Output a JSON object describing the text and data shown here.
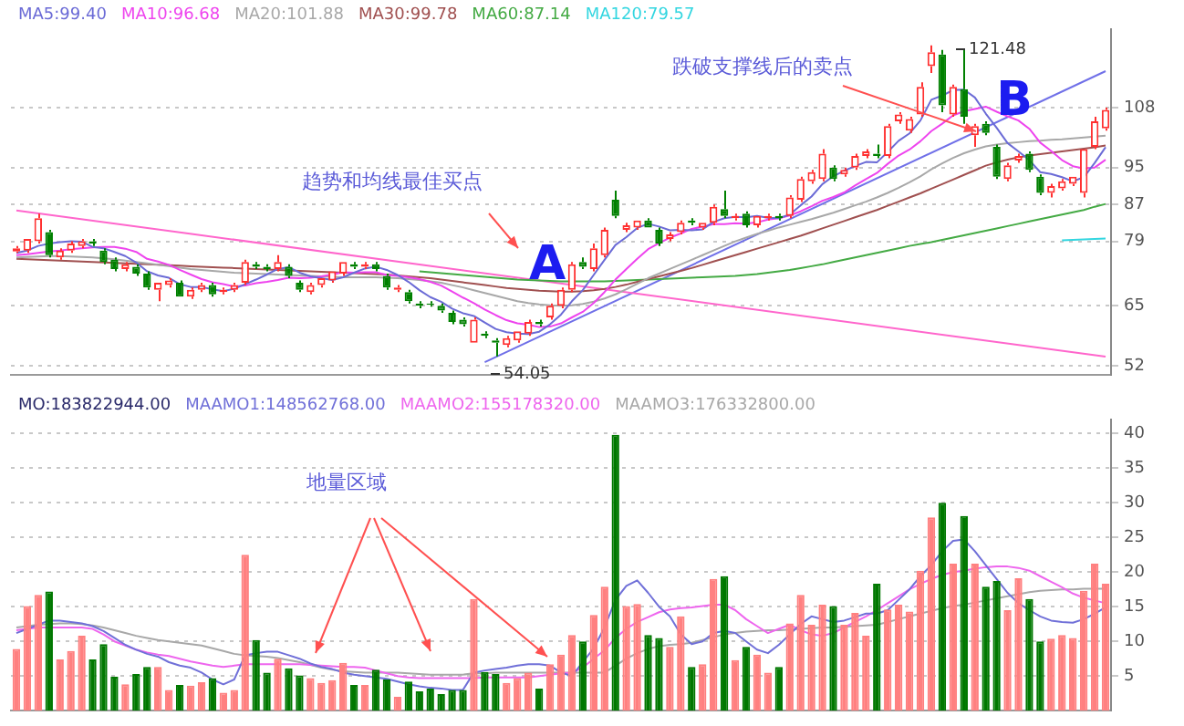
{
  "chart_data": [
    {
      "type": "candlestick",
      "categories": [
        null,
        null,
        null,
        null,
        null,
        null,
        null,
        null,
        null,
        null,
        null,
        null,
        null,
        null,
        null,
        null,
        null,
        null,
        null,
        null,
        null,
        null,
        null,
        null,
        null,
        null,
        null,
        null,
        null,
        null,
        null,
        null,
        null,
        null,
        null,
        null,
        null,
        null,
        null,
        null,
        null,
        null,
        null,
        null,
        null,
        null,
        null,
        null,
        null,
        null,
        null,
        null,
        null,
        null,
        null,
        null,
        null,
        null,
        null,
        null,
        null,
        null,
        null,
        null,
        null,
        null,
        null,
        null,
        null,
        null,
        null,
        null,
        null,
        null,
        null,
        null,
        null,
        null,
        null,
        null,
        null,
        null,
        null,
        null,
        null,
        null,
        null,
        null,
        null,
        null,
        null,
        null,
        null,
        null,
        null,
        null,
        null,
        null,
        null,
        null,
        null
      ],
      "ohlc": [
        [
          76.8,
          78,
          76.5,
          77.5
        ],
        [
          77,
          79.5,
          76.5,
          79.5
        ],
        [
          79,
          85,
          78.5,
          84
        ],
        [
          81,
          81.5,
          75.5,
          76
        ],
        [
          75.5,
          77.5,
          75,
          77
        ],
        [
          77,
          79,
          76.5,
          78.5
        ],
        [
          78,
          79.5,
          77.5,
          79
        ],
        [
          79,
          79.5,
          78,
          78.5
        ],
        [
          77,
          77.5,
          74,
          74.5
        ],
        [
          75,
          75.5,
          72.5,
          73
        ],
        [
          73,
          74.5,
          72.5,
          74
        ],
        [
          73.5,
          74,
          71.5,
          72
        ],
        [
          72,
          72.5,
          68.5,
          69
        ],
        [
          68.5,
          70,
          66,
          70
        ],
        [
          69.5,
          71,
          69,
          70.5
        ],
        [
          70,
          70.5,
          67,
          67
        ],
        [
          67,
          69,
          66.5,
          68.5
        ],
        [
          68.5,
          70,
          68,
          69.5
        ],
        [
          69.5,
          70,
          67,
          67.5
        ],
        [
          68,
          69,
          67.5,
          68.5
        ],
        [
          68.5,
          70,
          68,
          69.5
        ],
        [
          70,
          75,
          69.5,
          74.5
        ],
        [
          74,
          74.5,
          73,
          73.5
        ],
        [
          73.5,
          74,
          72.5,
          73
        ],
        [
          73,
          76,
          72.5,
          74.5
        ],
        [
          73.5,
          74,
          71,
          71.5
        ],
        [
          70,
          70.5,
          68,
          68.5
        ],
        [
          68,
          70,
          67.5,
          69.5
        ],
        [
          69.5,
          71,
          69,
          71
        ],
        [
          70.5,
          72.5,
          70,
          72.5
        ],
        [
          72,
          74.5,
          71.5,
          74.5
        ],
        [
          74,
          74.5,
          73,
          73.5
        ],
        [
          73.5,
          74.5,
          73,
          74
        ],
        [
          74,
          74.5,
          72.5,
          73
        ],
        [
          71.5,
          72,
          68.5,
          69
        ],
        [
          68.5,
          69.5,
          68,
          69
        ],
        [
          68,
          68.5,
          65.5,
          66
        ],
        [
          65.5,
          66,
          64.5,
          65
        ],
        [
          65.5,
          66,
          64.8,
          65.2
        ],
        [
          65,
          65.5,
          63.5,
          64
        ],
        [
          63.5,
          64,
          61,
          61.5
        ],
        [
          62,
          62.5,
          60.5,
          61
        ],
        [
          57,
          62.5,
          57,
          62
        ],
        [
          59,
          59.5,
          58,
          58.5
        ],
        [
          57.5,
          58,
          54.05,
          57
        ],
        [
          56.5,
          58.5,
          56,
          58
        ],
        [
          57.5,
          59.5,
          57,
          59.5
        ],
        [
          59,
          62,
          58.5,
          61.5
        ],
        [
          61.5,
          62,
          60.5,
          61
        ],
        [
          62.5,
          65.5,
          62,
          65
        ],
        [
          65,
          69,
          64.5,
          68.5
        ],
        [
          68.5,
          74.5,
          68,
          74
        ],
        [
          74.5,
          75.5,
          73,
          73.5
        ],
        [
          73,
          78.5,
          72.5,
          77.5
        ],
        [
          76,
          82,
          75.5,
          81.5
        ],
        [
          88,
          90,
          84,
          84.5
        ],
        [
          81.5,
          83,
          81,
          82.5
        ],
        [
          82,
          83.5,
          81.5,
          83.5
        ],
        [
          83.5,
          84,
          82,
          82
        ],
        [
          81.5,
          82,
          78,
          78.5
        ],
        [
          79.5,
          81,
          79,
          80.5
        ],
        [
          81,
          83.5,
          80.5,
          83
        ],
        [
          83.5,
          84,
          82.5,
          83
        ],
        [
          82,
          83,
          81.5,
          83
        ],
        [
          83,
          87,
          82.5,
          86.5
        ],
        [
          86,
          90,
          84,
          84.5
        ],
        [
          84,
          85,
          83.5,
          84.5
        ],
        [
          85,
          85.5,
          82,
          82.5
        ],
        [
          82.5,
          84.5,
          82,
          84.5
        ],
        [
          84,
          85,
          83.5,
          84.5
        ],
        [
          84.5,
          85,
          83.5,
          84
        ],
        [
          84.5,
          89,
          84,
          88.5
        ],
        [
          88,
          93,
          87.5,
          92.5
        ],
        [
          92,
          94.5,
          91.5,
          94
        ],
        [
          92.5,
          99,
          92,
          98
        ],
        [
          95,
          95.5,
          92,
          92.5
        ],
        [
          93.5,
          95,
          93,
          94.5
        ],
        [
          95,
          98,
          94.5,
          97.5
        ],
        [
          97.5,
          99,
          97,
          98.5
        ],
        [
          98,
          100,
          97,
          97.5
        ],
        [
          97.5,
          104.5,
          97,
          104
        ],
        [
          105,
          107,
          104.5,
          106.5
        ],
        [
          103,
          106,
          102.5,
          105.5
        ],
        [
          106.5,
          113.5,
          106,
          112.5
        ],
        [
          117,
          121.48,
          115.5,
          120
        ],
        [
          119.5,
          120.5,
          107,
          108.5
        ],
        [
          106.5,
          113,
          106,
          112.5
        ],
        [
          112,
          120.5,
          104.5,
          106
        ],
        [
          102,
          104.5,
          99.5,
          104
        ],
        [
          104.5,
          105,
          102,
          102.5
        ],
        [
          99.5,
          100,
          92.5,
          93
        ],
        [
          92.5,
          96,
          92,
          95.5
        ],
        [
          96.5,
          98,
          96,
          97.5
        ],
        [
          98,
          98.5,
          94,
          94.5
        ],
        [
          93,
          93.5,
          89,
          89.5
        ],
        [
          89.5,
          91.5,
          88.5,
          91
        ],
        [
          90.5,
          92.5,
          90,
          92
        ],
        [
          91.5,
          93,
          91,
          93
        ],
        [
          89.5,
          99,
          88.5,
          99
        ],
        [
          99.5,
          106,
          99,
          105
        ],
        [
          103.5,
          108,
          103,
          107.5
        ]
      ],
      "colors": [
        "#ff3030",
        "#ff3030",
        "#ff3030",
        "#008000",
        "#ff3030",
        "#ff3030",
        "#ff3030",
        "#008000",
        "#008000",
        "#008000",
        "#ff3030",
        "#008000",
        "#008000",
        "#ff3030",
        "#ff3030",
        "#008000",
        "#ff3030",
        "#ff3030",
        "#008000",
        "#ff3030",
        "#ff3030",
        "#ff3030",
        "#008000",
        "#008000",
        "#ff3030",
        "#008000",
        "#008000",
        "#ff3030",
        "#ff3030",
        "#ff3030",
        "#ff3030",
        "#008000",
        "#ff3030",
        "#008000",
        "#008000",
        "#ff3030",
        "#008000",
        "#008000",
        "#008000",
        "#008000",
        "#008000",
        "#008000",
        "#ff3030",
        "#008000",
        "#008000",
        "#ff3030",
        "#ff3030",
        "#ff3030",
        "#008000",
        "#ff3030",
        "#ff3030",
        "#ff3030",
        "#008000",
        "#ff3030",
        "#ff3030",
        "#008000",
        "#ff3030",
        "#ff3030",
        "#008000",
        "#008000",
        "#ff3030",
        "#ff3030",
        "#008000",
        "#ff3030",
        "#ff3030",
        "#008000",
        "#ff3030",
        "#008000",
        "#ff3030",
        "#ff3030",
        "#008000",
        "#ff3030",
        "#ff3030",
        "#ff3030",
        "#ff3030",
        "#008000",
        "#ff3030",
        "#ff3030",
        "#ff3030",
        "#008000",
        "#ff3030",
        "#ff3030",
        "#ff3030",
        "#ff3030",
        "#ff3030",
        "#008000",
        "#ff3030",
        "#008000",
        "#ff3030",
        "#008000",
        "#008000",
        "#ff3030",
        "#ff3030",
        "#008000",
        "#008000",
        "#ff3030",
        "#ff3030",
        "#ff3030",
        "#ff3030",
        "#ff3030",
        "#ff3030"
      ],
      "series": [
        {
          "name": "MA5:99.40",
          "type": "line",
          "color": "#6b6bd6",
          "values": [
            76.5,
            77,
            78,
            78.5,
            78.8,
            79,
            78.9,
            77.8,
            77.5,
            76.7,
            75.8,
            74.4,
            72.5,
            71.6,
            71.1,
            69.7,
            69.1,
            69.1,
            68.6,
            68.2,
            68.7,
            69.7,
            70.7,
            71.8,
            73,
            73.4,
            72.2,
            71.4,
            71,
            70.6,
            71.2,
            72.2,
            73.1,
            73.5,
            72.8,
            71.7,
            70.2,
            68.4,
            66.9,
            65.9,
            64.4,
            63.4,
            62.8,
            61.4,
            60,
            59.3,
            59,
            58.9,
            59.4,
            61,
            63.1,
            66,
            68.4,
            71.7,
            75,
            78.2,
            79.9,
            81.9,
            82.8,
            82.2,
            81.4,
            81.5,
            81.4,
            81.6,
            83.2,
            84,
            84.3,
            84.2,
            84.5,
            84.1,
            84,
            84.8,
            86.8,
            88.7,
            91.4,
            93.1,
            94.3,
            95.3,
            96.2,
            96.1,
            98.4,
            100.8,
            102.4,
            105.2,
            109.7,
            110.6,
            111.8,
            111.9,
            110.2,
            106.7,
            103.6,
            100.3,
            98.5,
            96.6,
            94,
            93.6,
            92.9,
            92,
            92.9,
            96,
            99.4
          ]
        },
        {
          "name": "MA10:96.68",
          "type": "line",
          "color": "#ee44ee",
          "values": [
            76,
            76.2,
            76.5,
            76.8,
            77,
            77.3,
            77.5,
            77.7,
            77.8,
            77.8,
            77.4,
            76.7,
            75.2,
            74.6,
            73.9,
            72.8,
            71.8,
            70.8,
            70.1,
            69.7,
            69.2,
            69.4,
            69.9,
            70.2,
            70.6,
            71.1,
            71,
            71.1,
            71.4,
            71.8,
            72.3,
            72.2,
            72.3,
            72.3,
            71.7,
            71.5,
            71.2,
            70.8,
            70.2,
            69.4,
            68.1,
            66.8,
            65.6,
            64.2,
            63,
            61.9,
            61.2,
            60.9,
            60.4,
            60.5,
            61.2,
            62.5,
            63.7,
            65.6,
            68,
            70.7,
            73,
            75.2,
            77.3,
            78.6,
            79.8,
            80.7,
            81.7,
            82.2,
            82.7,
            82.7,
            82.9,
            82.8,
            83.1,
            83.7,
            84,
            84.6,
            85.5,
            86.6,
            87.8,
            88.6,
            89.6,
            91.1,
            92.5,
            93.8,
            95.8,
            97.6,
            98.9,
            100.7,
            102.9,
            104.5,
            106.3,
            107.2,
            107.7,
            108.2,
            107.1,
            106.1,
            105.2,
            103.4,
            100.4,
            98.6,
            96.6,
            95.3,
            94.8,
            95,
            96.7
          ]
        },
        {
          "name": "MA20:101.88",
          "type": "line",
          "color": "#a8a8a8",
          "values": [
            75.5,
            75.6,
            75.7,
            75.8,
            75.8,
            75.7,
            75.6,
            75.5,
            75.3,
            75.1,
            74.8,
            74.5,
            74.2,
            73.9,
            73.6,
            73.3,
            73,
            72.8,
            72.6,
            72.4,
            72.2,
            72.1,
            72,
            71.9,
            71.8,
            71.7,
            71.6,
            71.5,
            71.4,
            71.3,
            71.2,
            71.2,
            71.2,
            71.2,
            71.1,
            71,
            70.8,
            70.6,
            70.3,
            70,
            69.5,
            69,
            68.4,
            67.8,
            67.2,
            66.6,
            66,
            65.6,
            65.3,
            65.1,
            65,
            65.1,
            65.4,
            65.9,
            66.6,
            67.5,
            68.6,
            69.8,
            71,
            72,
            73,
            74,
            75,
            76,
            77,
            78,
            79,
            79.8,
            80.6,
            81.3,
            82,
            82.6,
            83.2,
            83.8,
            84.5,
            85.2,
            86,
            86.8,
            87.6,
            88.5,
            89.5,
            90.6,
            91.8,
            93.1,
            94.6,
            95.9,
            97.1,
            98.1,
            98.9,
            99.6,
            100,
            100.3,
            100.5,
            100.7,
            100.8,
            101,
            101.1,
            101.3,
            101.5,
            101.7,
            101.9
          ]
        },
        {
          "name": "MA30:99.78",
          "type": "line",
          "color": "#a05050",
          "values": [
            75.2,
            75.1,
            75,
            74.9,
            74.8,
            74.7,
            74.6,
            74.5,
            74.4,
            74.3,
            74.2,
            74.1,
            74,
            73.9,
            73.8,
            73.7,
            73.6,
            73.5,
            73.4,
            73.3,
            73.2,
            73.1,
            73,
            72.9,
            72.8,
            72.7,
            72.6,
            72.5,
            72.4,
            72.3,
            72.2,
            72.1,
            72,
            71.9,
            71.8,
            71.6,
            71.4,
            71.2,
            71,
            70.7,
            70.4,
            70.1,
            69.8,
            69.5,
            69.2,
            68.9,
            68.7,
            68.5,
            68.3,
            68.2,
            68.1,
            68.1,
            68.2,
            68.4,
            68.7,
            69.1,
            69.6,
            70.2,
            70.8,
            71.4,
            72,
            72.6,
            73.2,
            73.9,
            74.6,
            75.3,
            76,
            76.7,
            77.4,
            78.1,
            78.8,
            79.5,
            80.2,
            81,
            81.8,
            82.6,
            83.4,
            84.2,
            85,
            85.8,
            86.7,
            87.6,
            88.5,
            89.4,
            90.4,
            91.4,
            92.4,
            93.4,
            94.4,
            95.4,
            96.1,
            96.7,
            97.2,
            97.6,
            97.9,
            98.2,
            98.5,
            98.8,
            99.1,
            99.4,
            99.8
          ]
        },
        {
          "name": "MA60:87.14",
          "type": "line",
          "color": "#44aa44",
          "values": [
            null,
            null,
            null,
            null,
            null,
            null,
            null,
            null,
            null,
            null,
            null,
            null,
            null,
            null,
            null,
            null,
            null,
            null,
            null,
            null,
            null,
            null,
            null,
            null,
            null,
            null,
            null,
            null,
            null,
            null,
            null,
            null,
            null,
            null,
            null,
            null,
            null,
            72.5,
            72.3,
            72.1,
            71.9,
            71.7,
            71.5,
            71.3,
            71.1,
            70.9,
            70.7,
            70.6,
            70.5,
            70.4,
            70.3,
            70.3,
            70.3,
            70.3,
            70.3,
            70.4,
            70.5,
            70.6,
            70.7,
            70.8,
            70.9,
            71,
            71.1,
            71.2,
            71.3,
            71.4,
            71.5,
            71.7,
            71.9,
            72.2,
            72.5,
            72.8,
            73.2,
            73.6,
            74,
            74.5,
            75,
            75.5,
            76,
            76.5,
            77,
            77.5,
            78,
            78.4,
            78.8,
            79.3,
            79.8,
            80.3,
            80.8,
            81.3,
            81.8,
            82.3,
            82.8,
            83.3,
            83.8,
            84.3,
            84.8,
            85.3,
            85.8,
            86.5,
            87.1
          ]
        },
        {
          "name": "MA120:79.57",
          "type": "line",
          "color": "#33d6e0",
          "values": [
            null,
            null,
            null,
            null,
            null,
            null,
            null,
            null,
            null,
            null,
            null,
            null,
            null,
            null,
            null,
            null,
            null,
            null,
            null,
            null,
            null,
            null,
            null,
            null,
            null,
            null,
            null,
            null,
            null,
            null,
            null,
            null,
            null,
            null,
            null,
            null,
            null,
            null,
            null,
            null,
            null,
            null,
            null,
            null,
            null,
            null,
            null,
            null,
            null,
            null,
            null,
            null,
            null,
            null,
            null,
            null,
            null,
            null,
            null,
            null,
            null,
            null,
            null,
            null,
            null,
            null,
            null,
            null,
            null,
            null,
            null,
            null,
            null,
            null,
            null,
            null,
            null,
            null,
            null,
            null,
            null,
            null,
            null,
            null,
            null,
            null,
            null,
            null,
            null,
            null,
            null,
            null,
            null,
            null,
            null,
            null,
            79.2,
            79.3,
            79.4,
            79.5,
            79.6
          ]
        },
        {
          "type": "line",
          "color": "#ff66cc",
          "values": [
            85.7,
            null,
            null,
            null,
            null,
            null,
            null,
            null,
            null,
            null,
            null,
            null,
            null,
            null,
            null,
            null,
            null,
            null,
            null,
            null,
            null,
            null,
            null,
            null,
            null,
            null,
            null,
            null,
            null,
            null,
            null,
            null,
            null,
            null,
            null,
            null,
            null,
            null,
            null,
            null,
            null,
            null,
            null,
            null,
            null,
            null,
            null,
            null,
            null,
            null,
            null,
            null,
            null,
            null,
            null,
            null,
            null,
            null,
            null,
            null,
            null,
            null,
            null,
            null,
            null,
            null,
            null,
            null,
            null,
            null,
            null,
            null,
            null,
            null,
            null,
            null,
            null,
            null,
            null,
            null,
            null,
            null,
            null,
            null,
            null,
            null,
            null,
            null,
            null,
            null,
            null,
            null,
            null,
            null,
            null,
            null,
            null,
            null,
            null,
            null,
            54
          ]
        },
        {
          "type": "line",
          "color": "#7070e8",
          "values": [
            null,
            null,
            null,
            null,
            null,
            null,
            null,
            null,
            null,
            null,
            null,
            null,
            null,
            null,
            null,
            null,
            null,
            null,
            null,
            null,
            null,
            null,
            null,
            null,
            null,
            null,
            null,
            null,
            null,
            null,
            null,
            null,
            null,
            null,
            null,
            null,
            null,
            null,
            null,
            null,
            null,
            null,
            null,
            52.8,
            null,
            null,
            null,
            null,
            null,
            null,
            null,
            null,
            null,
            null,
            null,
            null,
            null,
            null,
            null,
            null,
            null,
            null,
            null,
            null,
            null,
            null,
            null,
            null,
            null,
            null,
            null,
            null,
            null,
            null,
            null,
            null,
            null,
            null,
            null,
            null,
            null,
            null,
            null,
            null,
            null,
            null,
            null,
            null,
            null,
            null,
            null,
            null,
            null,
            null,
            null,
            null,
            null,
            null,
            null,
            null,
            115.9
          ]
        }
      ],
      "ylim": [
        50,
        125
      ],
      "yticks": [
        108,
        95,
        87,
        79,
        65,
        52
      ],
      "grid": "y",
      "tick_labels": "y",
      "annotations": [
        "121.48",
        "54.05",
        "趋势和均线最佳买点",
        "跌破支撑线后的卖点",
        "A",
        "B"
      ]
    },
    {
      "type": "bar",
      "categories": [
        null,
        null,
        null,
        null,
        null,
        null,
        null,
        null,
        null,
        null,
        null,
        null,
        null,
        null,
        null,
        null,
        null,
        null,
        null,
        null,
        null,
        null,
        null,
        null,
        null,
        null,
        null,
        null,
        null,
        null,
        null,
        null,
        null,
        null,
        null,
        null,
        null,
        null,
        null,
        null,
        null,
        null,
        null,
        null,
        null,
        null,
        null,
        null,
        null,
        null,
        null,
        null,
        null,
        null,
        null,
        null,
        null,
        null,
        null,
        null,
        null,
        null,
        null,
        null,
        null,
        null,
        null,
        null,
        null,
        null,
        null,
        null,
        null,
        null,
        null,
        null,
        null,
        null,
        null,
        null,
        null,
        null,
        null,
        null,
        null,
        null,
        null,
        null,
        null,
        null,
        null,
        null,
        null,
        null,
        null,
        null,
        null,
        null,
        null,
        null,
        null
      ],
      "values": [
        8.9,
        15.1,
        16.7,
        17.2,
        7.4,
        8.6,
        10.8,
        7.4,
        9.6,
        4.9,
        3.8,
        5.3,
        6.3,
        6.3,
        3,
        3.7,
        3.6,
        4.1,
        4.7,
        2.6,
        3,
        22.5,
        10.2,
        5.5,
        7.5,
        6.1,
        5.1,
        4.7,
        4,
        4.4,
        6.9,
        3.7,
        3.7,
        5.9,
        4.5,
        2,
        4.2,
        2.8,
        3.2,
        2.4,
        3,
        3,
        16.1,
        5.6,
        5.3,
        4,
        4.7,
        5.5,
        3.2,
        6.7,
        8.1,
        10.9,
        10,
        13.8,
        17.9,
        39.8,
        15.1,
        15.4,
        10.9,
        10.5,
        9.2,
        13.6,
        6.3,
        6.7,
        19,
        19.4,
        7.3,
        9.2,
        8.1,
        5.5,
        6.3,
        12.6,
        16.7,
        12.4,
        15.3,
        15.1,
        12.4,
        14.1,
        10.8,
        18.3,
        14.6,
        15.3,
        14.3,
        20.2,
        27.9,
        30,
        21.2,
        28.1,
        21.2,
        17.9,
        18.7,
        14.5,
        19.1,
        16.1,
        10,
        10.4,
        10.9,
        10.5,
        17.3,
        21.2,
        18.3
      ],
      "colors": [
        "#ff8080",
        "#ff8080",
        "#ff8080",
        "#007800",
        "#ff8080",
        "#ff8080",
        "#ff8080",
        "#007800",
        "#007800",
        "#007800",
        "#ff8080",
        "#007800",
        "#007800",
        "#ff8080",
        "#ff8080",
        "#007800",
        "#ff8080",
        "#ff8080",
        "#007800",
        "#ff8080",
        "#ff8080",
        "#ff8080",
        "#007800",
        "#007800",
        "#ff8080",
        "#007800",
        "#007800",
        "#ff8080",
        "#ff8080",
        "#ff8080",
        "#ff8080",
        "#007800",
        "#ff8080",
        "#007800",
        "#007800",
        "#ff8080",
        "#007800",
        "#007800",
        "#007800",
        "#007800",
        "#007800",
        "#007800",
        "#ff8080",
        "#007800",
        "#007800",
        "#ff8080",
        "#ff8080",
        "#ff8080",
        "#007800",
        "#ff8080",
        "#ff8080",
        "#ff8080",
        "#007800",
        "#ff8080",
        "#ff8080",
        "#007800",
        "#ff8080",
        "#ff8080",
        "#007800",
        "#007800",
        "#ff8080",
        "#ff8080",
        "#007800",
        "#ff8080",
        "#ff8080",
        "#007800",
        "#ff8080",
        "#007800",
        "#ff8080",
        "#ff8080",
        "#007800",
        "#ff8080",
        "#ff8080",
        "#ff8080",
        "#ff8080",
        "#007800",
        "#ff8080",
        "#ff8080",
        "#ff8080",
        "#007800",
        "#ff8080",
        "#ff8080",
        "#ff8080",
        "#ff8080",
        "#ff8080",
        "#007800",
        "#ff8080",
        "#007800",
        "#ff8080",
        "#007800",
        "#007800",
        "#ff8080",
        "#ff8080",
        "#007800",
        "#007800",
        "#ff8080",
        "#ff8080",
        "#ff8080",
        "#ff8080",
        "#ff8080",
        "#ff8080"
      ],
      "series": [
        {
          "name": "MAAMO1:148562768.00",
          "type": "line",
          "color": "#7070d8",
          "values": [
            11.2,
            11.8,
            12.4,
            13,
            13,
            12.8,
            12.6,
            12.2,
            11.5,
            10.5,
            9.5,
            8.8,
            8.2,
            7.8,
            7,
            6.5,
            6.2,
            5.5,
            4.5,
            3.8,
            4.5,
            8,
            8.3,
            8.5,
            8.5,
            8,
            7.5,
            6.8,
            6.3,
            6,
            5.5,
            5.2,
            5,
            4.8,
            4.6,
            4.2,
            3.8,
            3.5,
            3.3,
            3.2,
            3,
            3,
            5.5,
            5.8,
            6,
            6.2,
            6.5,
            6.7,
            6.7,
            6.5,
            5.5,
            5,
            7,
            9,
            12,
            16,
            18,
            18.8,
            17,
            15,
            13.6,
            11,
            9.6,
            10,
            11.2,
            11.5,
            11.2,
            10,
            8.8,
            8.3,
            9.5,
            11,
            12.5,
            13.6,
            13.2,
            12.8,
            13,
            13.5,
            14,
            14,
            14.5,
            16,
            17.5,
            19.4,
            21,
            23,
            24.5,
            24.7,
            23,
            21,
            19,
            17,
            15.5,
            14.5,
            13.6,
            13,
            12.8,
            12.7,
            13.2,
            14,
            14.9
          ]
        },
        {
          "name": "MAAMO2:155178320.00",
          "type": "line",
          "color": "#ee66ee",
          "values": [
            11.6,
            11.8,
            12,
            12,
            12,
            12,
            12,
            11.8,
            11,
            10,
            9.4,
            8.8,
            8.4,
            8.1,
            7.9,
            7.5,
            7.1,
            6.8,
            6.5,
            6.3,
            6.5,
            6.7,
            6.7,
            6.7,
            6.7,
            6.7,
            6.7,
            6.6,
            6.5,
            6.4,
            6.3,
            6.3,
            6.2,
            5.8,
            5.4,
            5,
            4.8,
            4.7,
            4.7,
            4.7,
            4.7,
            4.7,
            4.7,
            4.8,
            4.8,
            4.8,
            4.8,
            4.8,
            5,
            5.2,
            5.4,
            5.5,
            6.2,
            7.5,
            8.7,
            10.5,
            11.8,
            12.8,
            13.5,
            14.2,
            14.6,
            14.8,
            14.9,
            15.1,
            15.3,
            15.3,
            14.5,
            13.2,
            12.2,
            11.2,
            11.8,
            12.4,
            11.6,
            11,
            10.8,
            11.2,
            12,
            12.8,
            13.6,
            14.5,
            15.5,
            16.5,
            17.5,
            18.3,
            19,
            19.6,
            20,
            20.2,
            20.5,
            20.7,
            20.8,
            20.8,
            20.6,
            20.2,
            19.4,
            18.6,
            17.8,
            16.9,
            16.3,
            15.9,
            15.5
          ]
        },
        {
          "name": "MAAMO3:176332800.00",
          "type": "line",
          "color": "#a8a8a8",
          "values": [
            12,
            12.2,
            12.4,
            12.5,
            12.6,
            12.6,
            12.5,
            12.3,
            12,
            11.6,
            11.2,
            10.8,
            10.5,
            10.2,
            10,
            9.8,
            9.6,
            9.4,
            9,
            8.6,
            8.2,
            8,
            7.9,
            7.8,
            7.6,
            7.3,
            7,
            6.6,
            6.2,
            5.9,
            5.7,
            5.6,
            5.5,
            5.5,
            5.5,
            5.5,
            5.4,
            5.3,
            5.2,
            5.2,
            5.2,
            5.2,
            5.4,
            5.4,
            5.5,
            5.5,
            5.5,
            5.5,
            5.5,
            5.5,
            5.5,
            5.5,
            5.5,
            5.5,
            5.5,
            6.5,
            7.5,
            8.3,
            8.9,
            9.3,
            9.5,
            9.6,
            9.8,
            10.2,
            10.6,
            11,
            11.2,
            11.4,
            11.5,
            11.6,
            11.6,
            11.7,
            11.8,
            11.9,
            12,
            12,
            12.1,
            12.2,
            12.3,
            12.4,
            12.8,
            13.2,
            13.6,
            14,
            14.4,
            14.8,
            15.1,
            15.3,
            15.6,
            15.9,
            16.2,
            16.5,
            16.8,
            17.1,
            17.3,
            17.4,
            17.5,
            17.5,
            17.6,
            17.6,
            17.6
          ]
        }
      ],
      "ylim": [
        0,
        42
      ],
      "yticks": [
        5,
        10,
        15,
        20,
        25,
        30,
        35,
        40
      ],
      "grid": "y",
      "tick_labels": "y",
      "annotations": [
        "MO:183822944.00",
        "地量区域"
      ]
    }
  ]
}
